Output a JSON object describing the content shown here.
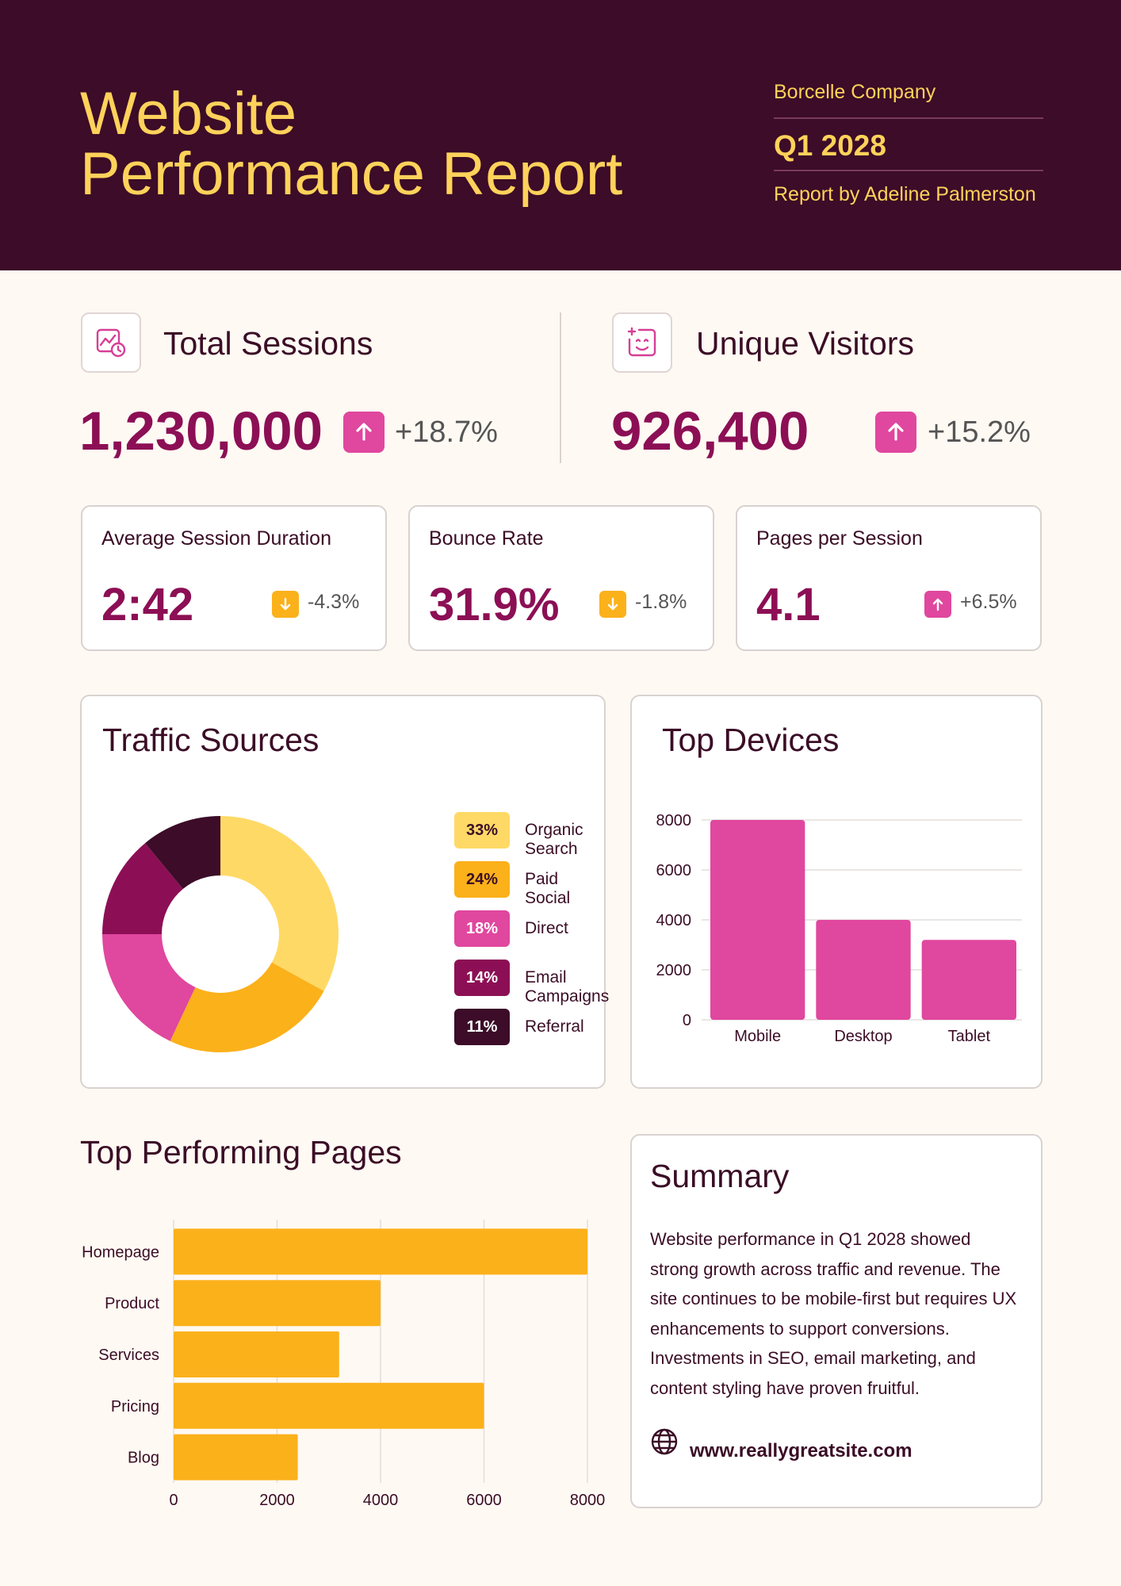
{
  "header": {
    "title_line1": "Website",
    "title_line2": "Performance Report",
    "company": "Borcelle Company",
    "quarter": "Q1 2028",
    "author": "Report by Adeline Palmerston"
  },
  "kpis": {
    "total_sessions": {
      "label": "Total Sessions",
      "value": "1,230,000",
      "change": "+18.7%",
      "icon": "chart-clock-icon"
    },
    "unique_visitors": {
      "label": "Unique Visitors",
      "value": "926,400",
      "change": "+15.2%",
      "icon": "smiley-sparkle-icon"
    }
  },
  "metrics": [
    {
      "label": "Average Session Duration",
      "value": "2:42",
      "change": "-4.3%",
      "direction": "down"
    },
    {
      "label": "Bounce Rate",
      "value": "31.9%",
      "change": "-1.8%",
      "direction": "down"
    },
    {
      "label": "Pages per Session",
      "value": "4.1",
      "change": "+6.5%",
      "direction": "up"
    }
  ],
  "traffic": {
    "title": "Traffic Sources",
    "items": [
      {
        "pct_label": "33%",
        "label": "Organic Search"
      },
      {
        "pct_label": "24%",
        "label": "Paid Social"
      },
      {
        "pct_label": "18%",
        "label": "Direct"
      },
      {
        "pct_label": "14%",
        "label": "Email Campaigns"
      },
      {
        "pct_label": "11%",
        "label": "Referral"
      }
    ]
  },
  "devices": {
    "title": "Top Devices"
  },
  "pages": {
    "title": "Top Performing Pages"
  },
  "summary": {
    "title": "Summary",
    "text": "Website performance in Q1 2028 showed strong growth across traffic and revenue. The site continues to be mobile-first but requires UX enhancements to support conversions. Investments in SEO, email marketing, and content styling have proven fruitful.",
    "url": "www.reallygreatsite.com"
  },
  "colors": {
    "header_bg": "#3c0c28",
    "accent_yellow": "#fed25a",
    "value_magenta": "#8c0f55",
    "up_pink": "#e0479e",
    "down_orange": "#fbb11a",
    "page_bg": "#fef9f3"
  },
  "chart_data": [
    {
      "type": "pie",
      "title": "Traffic Sources",
      "categories": [
        "Organic Search",
        "Paid Social",
        "Direct",
        "Email Campaigns",
        "Referral"
      ],
      "values": [
        33,
        24,
        18,
        14,
        11
      ],
      "colors": [
        "#ffd966",
        "#fbb11a",
        "#e0479e",
        "#8c0f55",
        "#3c0c28"
      ]
    },
    {
      "type": "bar",
      "title": "Top Devices",
      "categories": [
        "Mobile",
        "Desktop",
        "Tablet"
      ],
      "values": [
        8000,
        4000,
        3200
      ],
      "yticks": [
        0,
        2000,
        4000,
        6000,
        8000
      ],
      "ylim": [
        0,
        8000
      ],
      "grid": true,
      "color": "#e0479e"
    },
    {
      "type": "bar",
      "orientation": "horizontal",
      "title": "Top Performing Pages",
      "categories": [
        "Homepage",
        "Product",
        "Services",
        "Pricing",
        "Blog"
      ],
      "values": [
        8000,
        4000,
        3200,
        6000,
        2400
      ],
      "xticks": [
        0,
        2000,
        4000,
        6000,
        8000
      ],
      "xlim": [
        0,
        8000
      ],
      "grid": true,
      "color": "#fbb11a"
    }
  ]
}
